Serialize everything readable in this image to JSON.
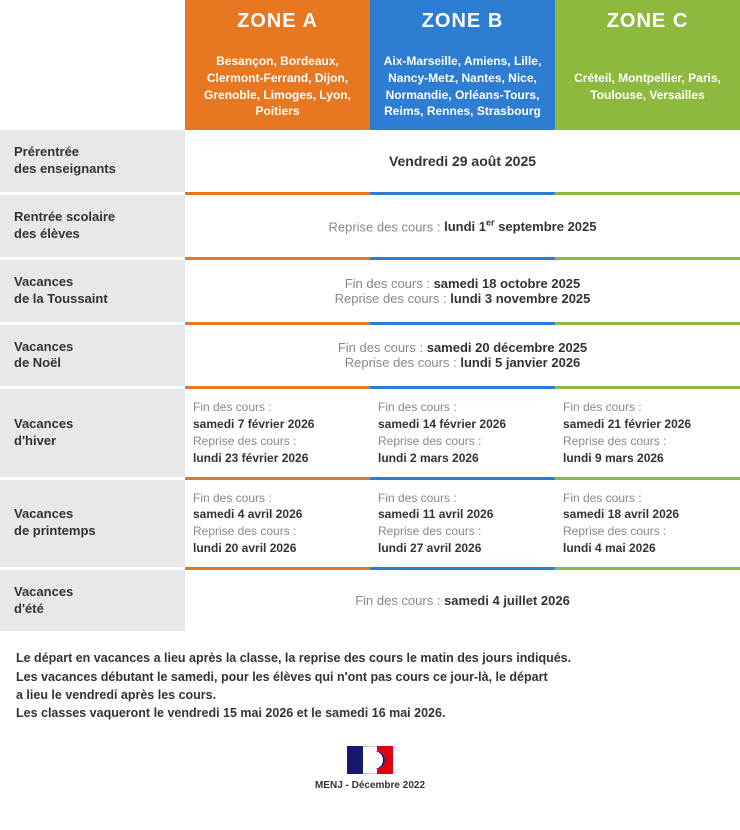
{
  "zones": {
    "a": {
      "title": "ZONE A",
      "color": "#e87722",
      "cities": "Besançon, Bordeaux, Clermont-Ferrand, Dijon, Grenoble, Limoges, Lyon, Poitiers"
    },
    "b": {
      "title": "ZONE B",
      "color": "#2d7dd2",
      "cities": "Aix-Marseille, Amiens, Lille, Nancy-Metz, Nantes, Nice, Normandie, Orléans-Tours, Reims, Rennes, Strasbourg"
    },
    "c": {
      "title": "ZONE C",
      "color": "#8dba3e",
      "cities": "Créteil, Montpellier, Paris, Toulouse, Versailles"
    }
  },
  "rows": {
    "prerentree": {
      "label": "Prérentrée\ndes enseignants",
      "date": "Vendredi 29 août 2025"
    },
    "rentree": {
      "label": "Rentrée scolaire\ndes élèves",
      "prefix": "Reprise des cours : ",
      "date_html": "lundi 1<sup>er</sup> septembre 2025"
    },
    "toussaint": {
      "label": "Vacances\nde la Toussaint",
      "fin_prefix": "Fin des cours : ",
      "fin_date": "samedi 18 octobre 2025",
      "rep_prefix": "Reprise des cours : ",
      "rep_date": "lundi 3 novembre 2025"
    },
    "noel": {
      "label": "Vacances\nde Noël",
      "fin_prefix": "Fin des cours : ",
      "fin_date": "samedi 20 décembre 2025",
      "rep_prefix": "Reprise des cours : ",
      "rep_date": "lundi 5 janvier 2026"
    },
    "hiver": {
      "label": "Vacances\nd'hiver",
      "fin_prefix": "Fin des cours :",
      "rep_prefix": "Reprise des cours :",
      "a_fin": "samedi 7 février 2026",
      "a_rep": "lundi 23 février 2026",
      "b_fin": "samedi 14 février 2026",
      "b_rep": "lundi 2 mars 2026",
      "c_fin": "samedi 21 février 2026",
      "c_rep": "lundi 9 mars 2026"
    },
    "printemps": {
      "label": "Vacances\nde printemps",
      "fin_prefix": "Fin des cours :",
      "rep_prefix": "Reprise des cours :",
      "a_fin": "samedi 4 avril 2026",
      "a_rep": "lundi 20 avril 2026",
      "b_fin": "samedi 11 avril 2026",
      "b_rep": "lundi 27 avril 2026",
      "c_fin": "samedi 18 avril 2026",
      "c_rep": "lundi 4 mai 2026"
    },
    "ete": {
      "label": "Vacances\nd'été",
      "prefix": "Fin des cours : ",
      "date": "samedi 4 juillet 2026"
    }
  },
  "footnotes": [
    "Le départ en vacances a lieu après la classe, la reprise des cours le matin des jours indiqués.",
    "Les vacances débutant le samedi, pour les élèves qui n'ont pas cours ce jour-là, le départ",
    "a lieu le vendredi après les cours.",
    "Les classes vaqueront le vendredi 15 mai 2026 et le samedi 16 mai 2026."
  ],
  "footer": "MENJ - Décembre 2022",
  "style": {
    "label_bg": "#e8e8e8",
    "prefix_color": "#888888",
    "date_color": "#333333"
  }
}
